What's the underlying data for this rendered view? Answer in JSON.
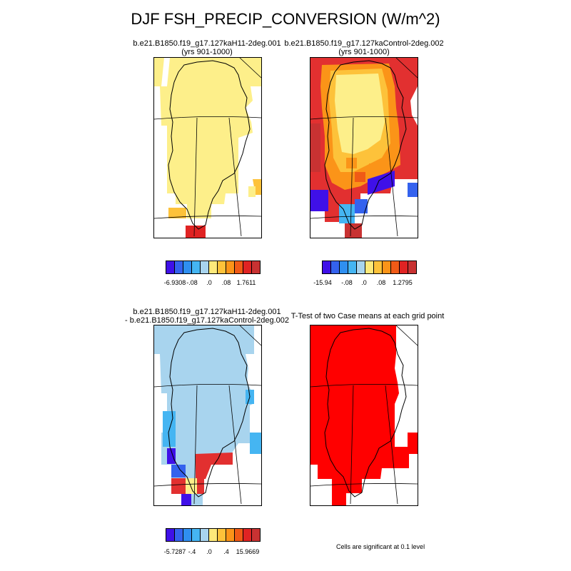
{
  "title": "DJF FSH_PRECIP_CONVERSION (W/m^2)",
  "panels": {
    "top_left": {
      "line1": "b.e21.B1850.f19_g17.127kaH11-2deg.001",
      "line2": "(yrs 901-1000)"
    },
    "top_right": {
      "line1": "b.e21.B1850.f19_g17.127kaControl-2deg.002",
      "line2": "(yrs 901-1000)"
    },
    "bottom_left": {
      "line1": "b.e21.B1850.f19_g17.127kaH11-2deg.001",
      "line2": "- b.e21.B1850.f19_g17.127kaControl-2deg.002"
    },
    "bottom_right": {
      "line1": "T-Test of two Case means at each grid point"
    }
  },
  "colorbars": {
    "top_left": {
      "labels": [
        "-6.9308",
        "-.08",
        ".0",
        ".08",
        "1.7611"
      ]
    },
    "top_right": {
      "labels": [
        "-15.94",
        "-.08",
        ".0",
        ".08",
        "1.2795"
      ]
    },
    "bottom_left": {
      "labels": [
        "-5.7287",
        "-.4",
        ".0",
        ".4",
        "15.9669"
      ]
    }
  },
  "colors": [
    "#3f10e8",
    "#3462ee",
    "#2f8ff0",
    "#45b5f2",
    "#a8d4ee",
    "#fde97a",
    "#fdc23a",
    "#fb9418",
    "#f05a16",
    "#e02323",
    "#c83232"
  ],
  "significance_color": "#ff0000",
  "significance_note": "Cells are significant at 0.1 level"
}
